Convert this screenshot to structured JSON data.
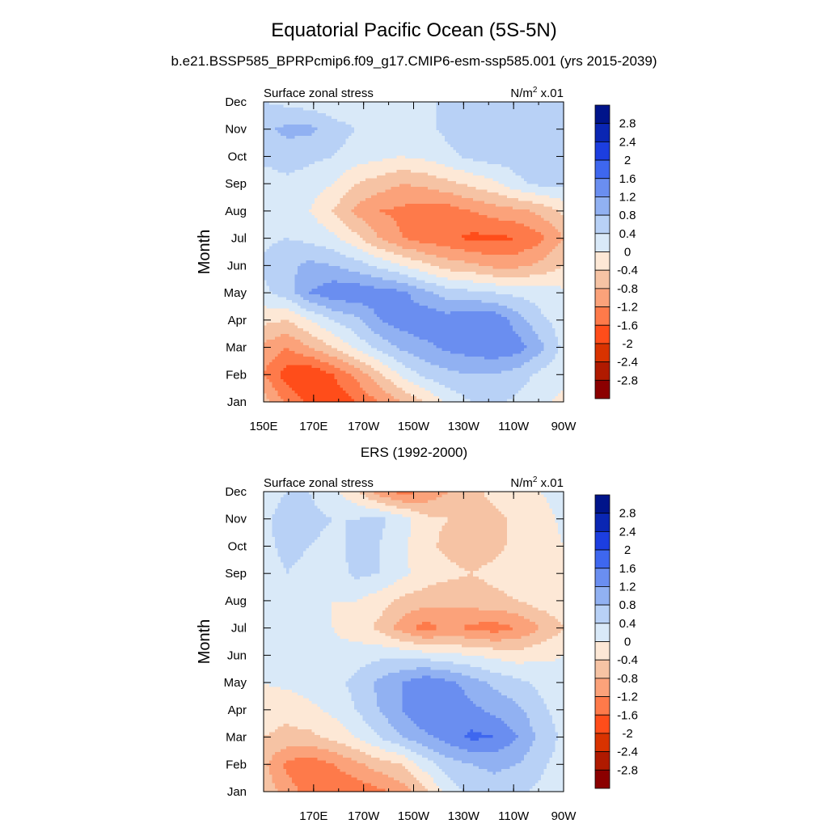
{
  "figure": {
    "title": "Equatorial Pacific Ocean (5S-5N)",
    "subtitle": "b.e21.BSSP585_BPRPcmip6.f09_g17.CMIP6-esm-ssp585.001 (yrs 2015-2039)"
  },
  "colorbar": {
    "labels": [
      "2.8",
      "2.4",
      "2",
      "1.6",
      "1.2",
      "0.8",
      "0.4",
      "0",
      "-0.4",
      "-0.8",
      "-1.2",
      "-1.6",
      "-2",
      "-2.4",
      "-2.8"
    ],
    "colors": [
      "#8b0000",
      "#b01a00",
      "#d93300",
      "#ff4d1a",
      "#fe7a4a",
      "#fba27a",
      "#f6c3a4",
      "#fde8d6",
      "#d9e9f8",
      "#b8d1f6",
      "#91b1f2",
      "#6a8ef0",
      "#3e67ef",
      "#1c3ee0",
      "#0a26b3",
      "#00148a"
    ]
  },
  "chart_data": [
    {
      "type": "heatmap",
      "title": "b.e21.BSSP585_BPRPcmip6.f09_g17.CMIP6-esm-ssp585.001 (yrs 2015-2039)",
      "left_label": "Surface zonal stress",
      "right_label_base": "N/m",
      "right_label_sup": "2",
      "right_label_tail": " x.01",
      "ylabel": "Month",
      "xlabel": "",
      "x": [
        "150E",
        "170E",
        "170W",
        "150W",
        "130W",
        "110W",
        "90W"
      ],
      "x_lon": [
        150,
        170,
        190,
        210,
        230,
        250,
        270
      ],
      "xlim": [
        150,
        270
      ],
      "y": [
        "Jan",
        "Feb",
        "Mar",
        "Apr",
        "May",
        "Jun",
        "Jul",
        "Aug",
        "Sep",
        "Oct",
        "Nov",
        "Dec"
      ],
      "levels": [
        -2.8,
        -2.4,
        -2,
        -1.6,
        -1.2,
        -0.8,
        -0.4,
        0,
        0.4,
        0.8,
        1.2,
        1.6,
        2,
        2.4,
        2.8
      ],
      "values": [
        [
          -0.6,
          -1.3,
          -1.7,
          -1.9,
          -1.6,
          -1.2,
          -0.8,
          -0.4,
          0.1,
          0.4,
          0.5,
          0.3,
          0.1,
          -0.1
        ],
        [
          -1.2,
          -1.8,
          -2.0,
          -1.6,
          -1.1,
          -0.5,
          0.1,
          0.5,
          0.7,
          0.8,
          0.8,
          0.6,
          0.3,
          0.1
        ],
        [
          -0.9,
          -1.2,
          -0.8,
          -0.4,
          0.1,
          0.5,
          0.9,
          1.1,
          1.3,
          1.4,
          1.5,
          1.4,
          0.9,
          0.3
        ],
        [
          -0.3,
          -0.4,
          0.0,
          0.4,
          0.7,
          1.2,
          1.4,
          1.5,
          1.4,
          1.6,
          1.5,
          1.0,
          0.5,
          0.2
        ],
        [
          0.3,
          0.6,
          1.2,
          1.5,
          1.5,
          1.4,
          1.3,
          0.9,
          0.6,
          0.5,
          0.4,
          0.3,
          0.2,
          0.1
        ],
        [
          0.5,
          0.7,
          0.9,
          0.8,
          0.6,
          0.3,
          0.0,
          -0.3,
          -0.6,
          -0.7,
          -0.9,
          -0.9,
          -0.7,
          -0.4
        ],
        [
          0.3,
          0.4,
          0.3,
          0.1,
          -0.3,
          -0.8,
          -1.2,
          -1.4,
          -1.5,
          -1.7,
          -1.7,
          -1.6,
          -1.3,
          -0.8
        ],
        [
          0.1,
          0.1,
          0.0,
          -0.4,
          -0.9,
          -1.2,
          -1.3,
          -1.4,
          -1.4,
          -1.2,
          -1.0,
          -0.9,
          -0.7,
          -0.3
        ],
        [
          0.2,
          0.3,
          0.2,
          0.0,
          -0.4,
          -0.6,
          -0.8,
          -0.7,
          -0.5,
          -0.3,
          -0.1,
          0.3,
          0.5,
          0.5
        ],
        [
          0.5,
          0.6,
          0.5,
          0.4,
          0.2,
          0.1,
          0.0,
          0.1,
          0.3,
          0.5,
          0.6,
          0.6,
          0.6,
          0.5
        ],
        [
          0.7,
          0.9,
          0.9,
          0.6,
          0.4,
          0.3,
          0.2,
          0.3,
          0.5,
          0.6,
          0.6,
          0.6,
          0.5,
          0.5
        ],
        [
          0.4,
          0.3,
          0.2,
          0.1,
          0.0,
          0.0,
          0.1,
          0.3,
          0.5,
          0.5,
          0.5,
          0.5,
          0.5,
          0.5
        ]
      ]
    },
    {
      "type": "heatmap",
      "title": "ERS (1992-2000)",
      "left_label": "Surface zonal stress",
      "right_label_base": "N/m",
      "right_label_sup": "2",
      "right_label_tail": " x.01",
      "ylabel": "Month",
      "xlabel": "",
      "x": [
        "170E",
        "170W",
        "150W",
        "130W",
        "110W",
        "90W"
      ],
      "x_lon": [
        170,
        190,
        210,
        230,
        250,
        270
      ],
      "xlim": [
        150,
        270
      ],
      "y": [
        "Jan",
        "Feb",
        "Mar",
        "Apr",
        "May",
        "Jun",
        "Jul",
        "Aug",
        "Sep",
        "Oct",
        "Nov",
        "Dec"
      ],
      "levels": [
        -2.8,
        -2.4,
        -2,
        -1.6,
        -1.2,
        -0.8,
        -0.4,
        0,
        0.4,
        0.8,
        1.2,
        1.6,
        2,
        2.4,
        2.8
      ],
      "values": [
        [
          -0.5,
          -1.0,
          -1.4,
          -1.6,
          -1.5,
          -1.3,
          -1.0,
          -0.5,
          0.2,
          0.5,
          0.6,
          0.5,
          0.3,
          0.1
        ],
        [
          -0.7,
          -1.3,
          -1.5,
          -1.2,
          -0.9,
          -0.6,
          -0.4,
          0.2,
          0.6,
          0.8,
          0.9,
          0.8,
          0.5,
          0.2
        ],
        [
          -0.4,
          -0.5,
          -0.5,
          -0.3,
          0.0,
          0.4,
          0.8,
          1.1,
          1.4,
          1.7,
          1.6,
          1.2,
          0.7,
          0.3
        ],
        [
          -0.2,
          -0.3,
          -0.1,
          0.1,
          0.4,
          0.8,
          1.2,
          1.6,
          1.6,
          1.3,
          1.1,
          0.9,
          0.5,
          0.2
        ],
        [
          0.0,
          0.1,
          0.2,
          0.3,
          0.5,
          0.9,
          1.2,
          1.5,
          1.3,
          1.0,
          0.7,
          0.5,
          0.3,
          0.1
        ],
        [
          0.1,
          0.2,
          0.1,
          0.1,
          0.2,
          0.3,
          0.3,
          0.2,
          0.1,
          0.0,
          -0.1,
          -0.2,
          -0.1,
          0.0
        ],
        [
          0.0,
          0.1,
          0.1,
          0.0,
          -0.2,
          -0.5,
          -1.0,
          -1.4,
          -1.1,
          -1.3,
          -1.4,
          -1.2,
          -0.8,
          -0.4
        ],
        [
          0.1,
          0.2,
          0.1,
          0.0,
          0.0,
          -0.2,
          -0.5,
          -0.6,
          -0.7,
          -0.6,
          -0.5,
          -0.4,
          -0.2,
          -0.1
        ],
        [
          0.2,
          0.4,
          0.3,
          0.2,
          0.5,
          0.4,
          0.1,
          -0.2,
          -0.3,
          -0.4,
          -0.3,
          -0.2,
          -0.1,
          0.0
        ],
        [
          0.3,
          0.5,
          0.4,
          0.3,
          0.5,
          0.4,
          0.1,
          -0.3,
          -0.5,
          -0.6,
          -0.5,
          -0.3,
          -0.2,
          0.0
        ],
        [
          0.3,
          0.6,
          0.5,
          0.4,
          0.4,
          0.5,
          0.2,
          -0.3,
          -0.4,
          -0.5,
          -0.5,
          -0.3,
          -0.2,
          0.1
        ],
        [
          0.2,
          0.4,
          0.4,
          0.1,
          -0.3,
          -1.0,
          -1.4,
          -1.1,
          -0.8,
          -0.5,
          -0.3,
          -0.2,
          0.0,
          0.2
        ]
      ]
    }
  ]
}
